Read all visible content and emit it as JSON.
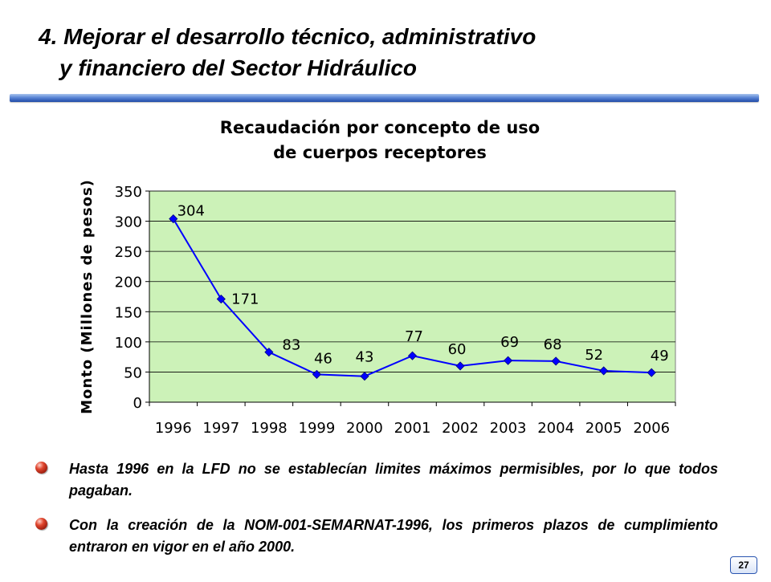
{
  "slide": {
    "title_line1": "4. Mejorar el desarrollo técnico, administrativo",
    "title_line2": "y financiero del Sector Hidráulico",
    "page_number": "27"
  },
  "bullets": [
    "Hasta 1996 en la LFD no se establecían limites máximos permisibles, por lo que todos pagaban.",
    "Con la creación de la NOM-001-SEMARNAT-1996, los primeros plazos de cumplimiento entraron en vigor en el año 2000."
  ],
  "colors": {
    "plot_background": "#ccf2b8",
    "series_line": "#0000ff",
    "title_rule": "#2a55b0",
    "bullet": "#c02010"
  },
  "icons": {
    "bullet": "red-sphere-bullet-icon"
  },
  "chart_data": {
    "type": "line",
    "title_line1": "Recaudación por concepto de uso",
    "title_line2": "de cuerpos receptores",
    "xlabel": "",
    "ylabel": "Monto (Millones de pesos)",
    "categories": [
      "1996",
      "1997",
      "1998",
      "1999",
      "2000",
      "2001",
      "2002",
      "2003",
      "2004",
      "2005",
      "2006"
    ],
    "series": [
      {
        "values": [
          304,
          171,
          83,
          46,
          43,
          77,
          60,
          69,
          68,
          52,
          49
        ],
        "data_labels": [
          "304",
          "171",
          "83",
          "46",
          "43",
          "77",
          "60",
          "69",
          "68",
          "52",
          "49"
        ]
      }
    ],
    "ylim": [
      0,
      350
    ],
    "yticks": [
      0,
      50,
      100,
      150,
      200,
      250,
      300,
      350
    ],
    "ytick_labels": [
      "0",
      "50",
      "100",
      "150",
      "200",
      "250",
      "300",
      "350"
    ],
    "grid": "horizontal",
    "legend": "none",
    "marker": "diamond"
  }
}
